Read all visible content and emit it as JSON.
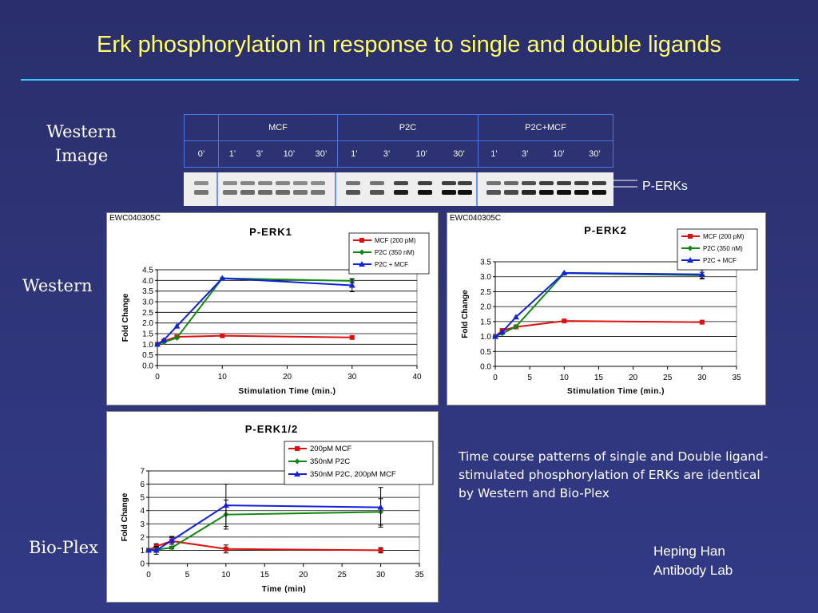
{
  "title": "Erk phosphorylation in response to single and double ligands",
  "labels": {
    "western_image": "Western Image",
    "western": "Western",
    "bioplex": "Bio-Plex",
    "perks": "P-ERKs"
  },
  "lane_table": {
    "groups": [
      "MCF",
      "P2C",
      "P2C+MCF"
    ],
    "zero_lane": "0’",
    "group_lanes": [
      [
        "1’",
        "3’",
        "10’",
        "30’"
      ],
      [
        "1’",
        "3’",
        "10’",
        "30’"
      ],
      [
        "1’",
        "3’",
        "10’",
        "30’"
      ]
    ]
  },
  "caption": "Time course patterns of single and Double ligand-stimulated phosphorylation of ERKs are identical by Western and Bio-Plex",
  "credit": [
    "Heping Han",
    "Antibody Lab"
  ],
  "colors": {
    "mcf": "#dd1111",
    "p2c": "#118811",
    "combo": "#1122dd",
    "title": "#ffff66",
    "rule": "#33ccff"
  },
  "chart_data": [
    {
      "id_label": "EWC040305C",
      "type": "line",
      "title": "P-ERK1",
      "xlabel": "Stimulation Time (min.)",
      "ylabel": "Fold Change",
      "xlim": [
        0,
        40
      ],
      "xticks": [
        0,
        10,
        20,
        30,
        40
      ],
      "ylim": [
        0,
        4.5
      ],
      "yticks": [
        0.0,
        0.5,
        1.0,
        1.5,
        2.0,
        2.5,
        3.0,
        3.5,
        4.0,
        4.5
      ],
      "ytick_labels": [
        "0.0",
        "0.5",
        "1.0",
        "1.5",
        "2.0",
        "2.5",
        "3.0",
        "3.5",
        "4.0",
        "4.5"
      ],
      "legend": "top-right",
      "series": [
        {
          "name": "MCF (200 pM)",
          "color": "#dd1111",
          "marker": "square",
          "x": [
            0,
            1,
            3,
            10,
            30
          ],
          "y": [
            1.0,
            1.15,
            1.35,
            1.4,
            1.32
          ],
          "err": [
            0,
            0,
            0,
            0,
            0.07
          ]
        },
        {
          "name": "P2C (350 nM)",
          "color": "#118811",
          "marker": "diamond",
          "x": [
            0,
            1,
            3,
            10,
            30
          ],
          "y": [
            1.0,
            1.1,
            1.3,
            4.1,
            3.98
          ],
          "err": [
            0,
            0,
            0,
            0,
            0.1
          ]
        },
        {
          "name": "P2C + MCF",
          "color": "#1122dd",
          "marker": "triangle",
          "x": [
            0,
            1,
            3,
            10,
            30
          ],
          "y": [
            1.0,
            1.2,
            1.85,
            4.1,
            3.77
          ],
          "err": [
            0,
            0,
            0,
            0,
            0.3
          ]
        }
      ]
    },
    {
      "id_label": "EWC040305C",
      "type": "line",
      "title": "P-ERK2",
      "xlabel": "Stimulation Time (min.)",
      "ylabel": "Fold Change",
      "xlim": [
        0,
        35
      ],
      "xticks": [
        0,
        5,
        10,
        15,
        20,
        25,
        30,
        35
      ],
      "ylim": [
        0,
        3.5
      ],
      "yticks": [
        0.0,
        0.5,
        1.0,
        1.5,
        2.0,
        2.5,
        3.0,
        3.5
      ],
      "ytick_labels": [
        "0.0",
        "0.5",
        "1.0",
        "1.5",
        "2.0",
        "2.5",
        "3.0",
        "3.5"
      ],
      "legend": "top-right",
      "series": [
        {
          "name": "MCF (200 pM)",
          "color": "#dd1111",
          "marker": "square",
          "x": [
            0,
            1,
            3,
            10,
            30
          ],
          "y": [
            1.0,
            1.2,
            1.32,
            1.52,
            1.48
          ],
          "err": [
            0,
            0,
            0,
            0,
            0.05
          ]
        },
        {
          "name": "P2C (350 nM)",
          "color": "#118811",
          "marker": "diamond",
          "x": [
            0,
            1,
            3,
            10,
            30
          ],
          "y": [
            1.0,
            1.1,
            1.33,
            3.12,
            3.05
          ],
          "err": [
            0,
            0,
            0,
            0,
            0.1
          ]
        },
        {
          "name": "P2C + MCF",
          "color": "#1122dd",
          "marker": "triangle",
          "x": [
            0,
            1,
            3,
            10,
            30
          ],
          "y": [
            1.0,
            1.15,
            1.65,
            3.13,
            3.08
          ],
          "err": [
            0,
            0,
            0,
            0,
            0.15
          ]
        }
      ]
    },
    {
      "id_label": "",
      "type": "line",
      "title": "P-ERK1/2",
      "xlabel": "Time (min)",
      "ylabel": "Fold Change",
      "xlim": [
        0,
        35
      ],
      "xticks": [
        0,
        5,
        10,
        15,
        20,
        25,
        30,
        35
      ],
      "ylim": [
        0,
        7
      ],
      "yticks": [
        0,
        1,
        2,
        3,
        4,
        5,
        6,
        7
      ],
      "ytick_labels": [
        "0",
        "1",
        "2",
        "3",
        "4",
        "5",
        "6",
        "7"
      ],
      "legend": "top-right",
      "series": [
        {
          "name": "200pM MCF",
          "color": "#dd1111",
          "marker": "square",
          "x": [
            0,
            1,
            3,
            10,
            30
          ],
          "y": [
            1.0,
            1.3,
            1.7,
            1.1,
            1.0
          ],
          "err": [
            0,
            0.2,
            0.25,
            0.3,
            0.2
          ]
        },
        {
          "name": "350nM P2C",
          "color": "#118811",
          "marker": "diamond",
          "x": [
            0,
            1,
            3,
            10,
            30
          ],
          "y": [
            1.0,
            1.05,
            1.2,
            3.7,
            3.9
          ],
          "err": [
            0,
            0.2,
            0.1,
            1.1,
            1.0
          ]
        },
        {
          "name": "350nM P2C, 200pM MCF",
          "color": "#1122dd",
          "marker": "triangle",
          "x": [
            0,
            1,
            3,
            10,
            30
          ],
          "y": [
            1.0,
            1.0,
            1.75,
            4.4,
            4.25
          ],
          "err": [
            0,
            0.3,
            0.3,
            1.6,
            1.5
          ]
        }
      ]
    }
  ]
}
